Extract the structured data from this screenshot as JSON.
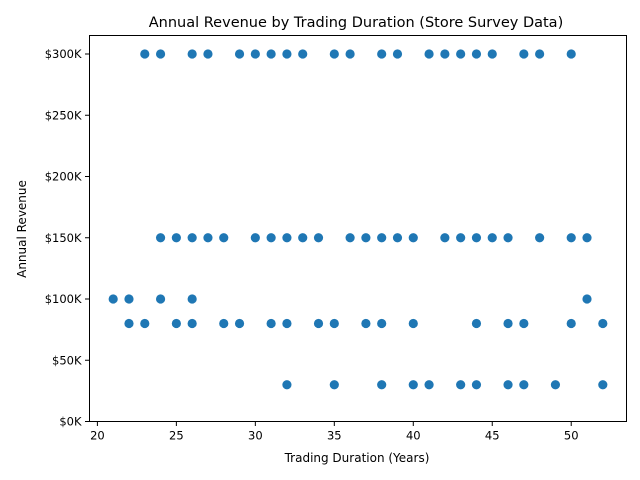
{
  "chart_data": {
    "type": "scatter",
    "title": "Annual Revenue by Trading Duration (Store Survey Data)",
    "xlabel": "Trading Duration (Years)",
    "ylabel": "Annual Revenue",
    "xlim": [
      19.5,
      53.5
    ],
    "ylim": [
      0,
      300000
    ],
    "xticks": [
      20,
      25,
      30,
      35,
      40,
      45,
      50
    ],
    "xtick_labels": [
      "20",
      "25",
      "30",
      "35",
      "40",
      "45",
      "50"
    ],
    "yticks": [
      0,
      50000,
      100000,
      150000,
      200000,
      250000,
      300000
    ],
    "ytick_labels": [
      "$0K",
      "$50K",
      "$100K",
      "$150K",
      "$200K",
      "$250K",
      "$300K"
    ],
    "grid": false,
    "legend": "none",
    "color": "#1f77b4",
    "points": [
      {
        "x": 23,
        "y": 300000
      },
      {
        "x": 24,
        "y": 300000
      },
      {
        "x": 26,
        "y": 300000
      },
      {
        "x": 27,
        "y": 300000
      },
      {
        "x": 29,
        "y": 300000
      },
      {
        "x": 30,
        "y": 300000
      },
      {
        "x": 31,
        "y": 300000
      },
      {
        "x": 32,
        "y": 300000
      },
      {
        "x": 33,
        "y": 300000
      },
      {
        "x": 35,
        "y": 300000
      },
      {
        "x": 36,
        "y": 300000
      },
      {
        "x": 38,
        "y": 300000
      },
      {
        "x": 39,
        "y": 300000
      },
      {
        "x": 41,
        "y": 300000
      },
      {
        "x": 42,
        "y": 300000
      },
      {
        "x": 43,
        "y": 300000
      },
      {
        "x": 44,
        "y": 300000
      },
      {
        "x": 45,
        "y": 300000
      },
      {
        "x": 47,
        "y": 300000
      },
      {
        "x": 48,
        "y": 300000
      },
      {
        "x": 50,
        "y": 300000
      },
      {
        "x": 24,
        "y": 150000
      },
      {
        "x": 25,
        "y": 150000
      },
      {
        "x": 26,
        "y": 150000
      },
      {
        "x": 27,
        "y": 150000
      },
      {
        "x": 28,
        "y": 150000
      },
      {
        "x": 30,
        "y": 150000
      },
      {
        "x": 31,
        "y": 150000
      },
      {
        "x": 32,
        "y": 150000
      },
      {
        "x": 33,
        "y": 150000
      },
      {
        "x": 34,
        "y": 150000
      },
      {
        "x": 36,
        "y": 150000
      },
      {
        "x": 37,
        "y": 150000
      },
      {
        "x": 38,
        "y": 150000
      },
      {
        "x": 39,
        "y": 150000
      },
      {
        "x": 40,
        "y": 150000
      },
      {
        "x": 42,
        "y": 150000
      },
      {
        "x": 43,
        "y": 150000
      },
      {
        "x": 44,
        "y": 150000
      },
      {
        "x": 45,
        "y": 150000
      },
      {
        "x": 46,
        "y": 150000
      },
      {
        "x": 48,
        "y": 150000
      },
      {
        "x": 50,
        "y": 150000
      },
      {
        "x": 51,
        "y": 150000
      },
      {
        "x": 21,
        "y": 100000
      },
      {
        "x": 22,
        "y": 100000
      },
      {
        "x": 24,
        "y": 100000
      },
      {
        "x": 26,
        "y": 100000
      },
      {
        "x": 51,
        "y": 100000
      },
      {
        "x": 22,
        "y": 80000
      },
      {
        "x": 23,
        "y": 80000
      },
      {
        "x": 25,
        "y": 80000
      },
      {
        "x": 26,
        "y": 80000
      },
      {
        "x": 28,
        "y": 80000
      },
      {
        "x": 29,
        "y": 80000
      },
      {
        "x": 31,
        "y": 80000
      },
      {
        "x": 32,
        "y": 80000
      },
      {
        "x": 34,
        "y": 80000
      },
      {
        "x": 35,
        "y": 80000
      },
      {
        "x": 37,
        "y": 80000
      },
      {
        "x": 38,
        "y": 80000
      },
      {
        "x": 40,
        "y": 80000
      },
      {
        "x": 44,
        "y": 80000
      },
      {
        "x": 46,
        "y": 80000
      },
      {
        "x": 47,
        "y": 80000
      },
      {
        "x": 50,
        "y": 80000
      },
      {
        "x": 52,
        "y": 80000
      },
      {
        "x": 32,
        "y": 30000
      },
      {
        "x": 35,
        "y": 30000
      },
      {
        "x": 38,
        "y": 30000
      },
      {
        "x": 40,
        "y": 30000
      },
      {
        "x": 41,
        "y": 30000
      },
      {
        "x": 43,
        "y": 30000
      },
      {
        "x": 44,
        "y": 30000
      },
      {
        "x": 46,
        "y": 30000
      },
      {
        "x": 47,
        "y": 30000
      },
      {
        "x": 49,
        "y": 30000
      },
      {
        "x": 52,
        "y": 30000
      }
    ]
  }
}
